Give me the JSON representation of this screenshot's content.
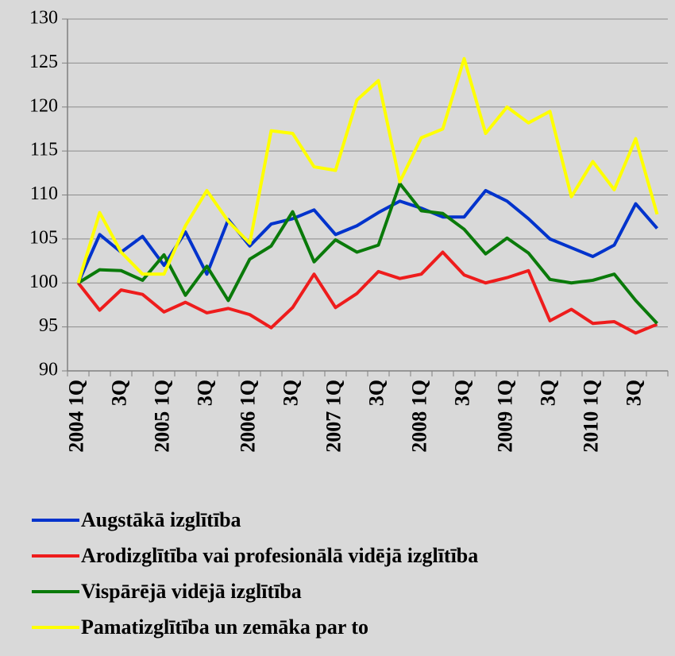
{
  "chart_data": {
    "type": "line",
    "categories": [
      "2004 1Q",
      null,
      "3Q",
      null,
      "2005 1Q",
      null,
      "3Q",
      null,
      "2006 1Q",
      null,
      "3Q",
      null,
      "2007 1Q",
      null,
      "3Q",
      null,
      "2008 1Q",
      null,
      "3Q",
      null,
      "2009 1Q",
      null,
      "3Q",
      null,
      "2010 1Q",
      null,
      "3Q",
      null
    ],
    "series": [
      {
        "name": "Augstākā izglītība",
        "color": "#0033cc",
        "values": [
          100,
          105.5,
          103.5,
          105.3,
          102,
          105.8,
          101,
          107.2,
          104.2,
          106.7,
          107.3,
          108.3,
          105.5,
          106.5,
          108,
          109.3,
          108.5,
          107.5,
          107.5,
          110.5,
          109.3,
          107.3,
          105,
          104,
          103,
          104.3,
          109,
          106.2
        ]
      },
      {
        "name": "Arodizglītība vai profesionālā vidējā izglītība",
        "color": "#ee1c1c",
        "values": [
          100,
          96.9,
          99.2,
          98.7,
          96.7,
          97.8,
          96.6,
          97.1,
          96.4,
          94.9,
          97.2,
          101,
          97.2,
          98.8,
          101.3,
          100.5,
          101,
          103.5,
          100.9,
          100,
          100.6,
          101.4,
          95.7,
          97,
          95.4,
          95.6,
          94.3,
          95.3
        ]
      },
      {
        "name": "Vispārējā vidējā izglītība",
        "color": "#0a7a0a",
        "values": [
          100,
          101.5,
          101.4,
          100.3,
          103.2,
          98.6,
          101.9,
          98,
          102.7,
          104.2,
          108.1,
          102.4,
          104.9,
          103.5,
          104.3,
          111.3,
          108.2,
          107.9,
          106.1,
          103.3,
          105.1,
          103.4,
          100.4,
          100,
          100.3,
          101,
          98,
          95.4
        ]
      },
      {
        "name": "Pamatizglītība un zemāka par to",
        "color": "#ffff00",
        "values": [
          100,
          108,
          103.5,
          101,
          101,
          106.5,
          110.5,
          107,
          104.5,
          117.3,
          117,
          113.2,
          112.8,
          120.8,
          123,
          111.5,
          116.5,
          117.5,
          125.5,
          117,
          120,
          118.2,
          119.5,
          109.8,
          113.8,
          110.6,
          116.4,
          107.8
        ]
      }
    ],
    "ylim": [
      90,
      130
    ],
    "yticks": [
      90,
      95,
      100,
      105,
      110,
      115,
      120,
      125,
      130
    ],
    "grid": true
  }
}
